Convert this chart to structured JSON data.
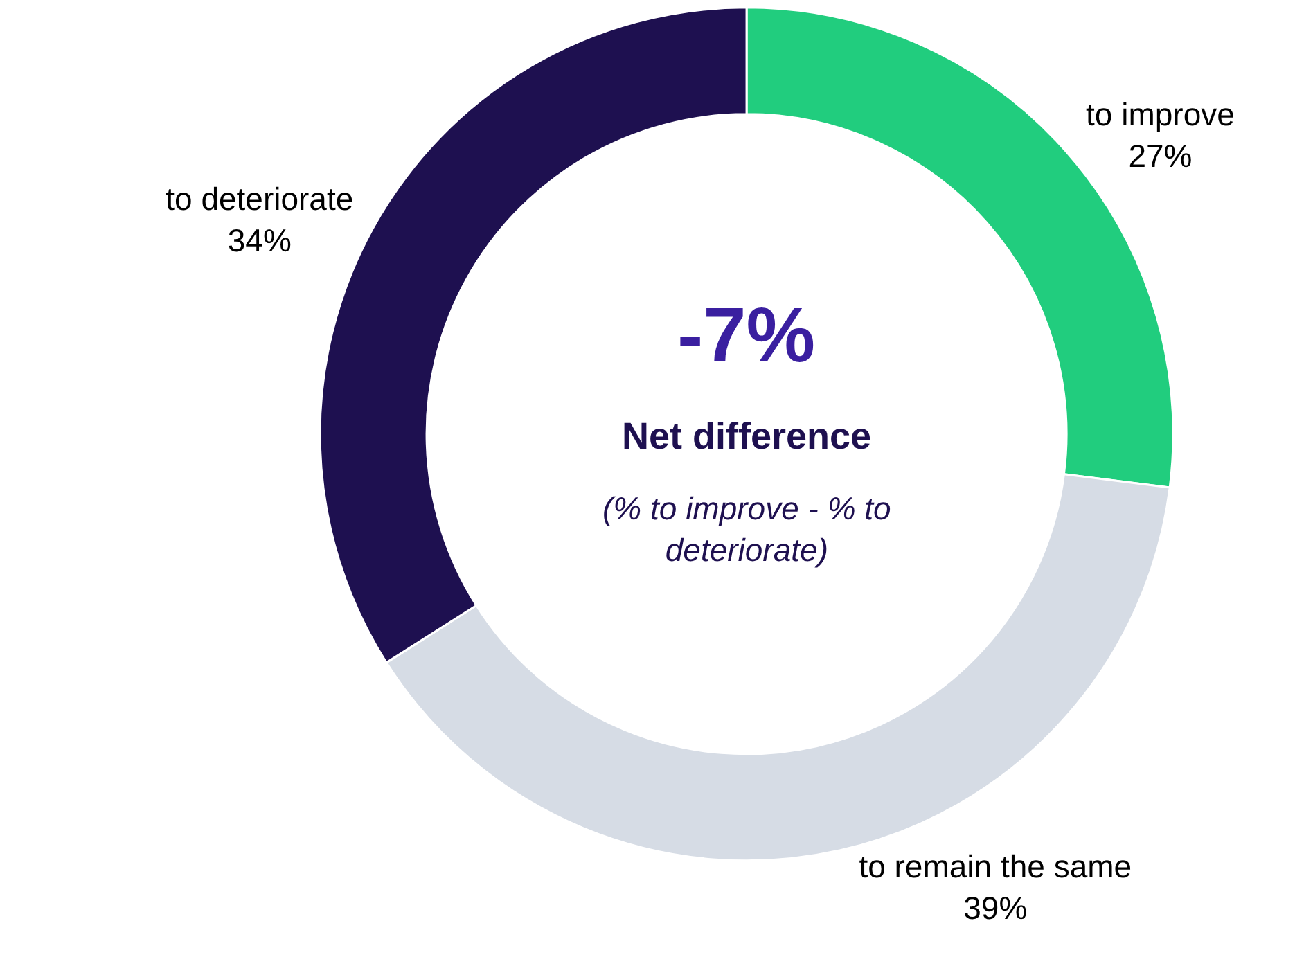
{
  "chart_data": {
    "type": "donut",
    "categories": [
      "to improve",
      "to remain the same",
      "to deteriorate"
    ],
    "values": [
      27,
      39,
      34
    ],
    "value_labels": [
      "27%",
      "39%",
      "34%"
    ],
    "colors": [
      "#21cd7e",
      "#d6dce5",
      "#1e1050"
    ],
    "annotations": [
      "-7%",
      "Net difference",
      "(% to improve - % to deteriorate)"
    ],
    "legend": false
  }
}
